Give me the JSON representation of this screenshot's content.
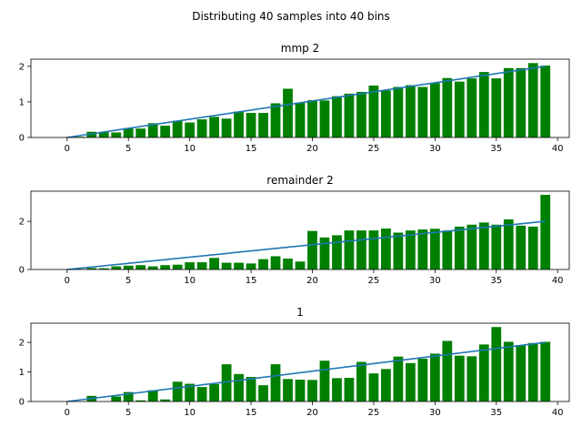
{
  "figure": {
    "suptitle": "Distributing 40 samples into 40 bins"
  },
  "colors": {
    "bar": "#008000",
    "line": "#1f77b4",
    "axis": "#000000"
  },
  "chart_data": [
    {
      "type": "bar",
      "title": "mmp  2",
      "xlim": [
        -2.95,
        40.95
      ],
      "ylim": [
        0,
        2.2
      ],
      "xticks": [
        0,
        5,
        10,
        15,
        20,
        25,
        30,
        35,
        40
      ],
      "yticks": [
        0,
        1,
        2
      ],
      "x": [
        0,
        1,
        2,
        3,
        4,
        5,
        6,
        7,
        8,
        9,
        10,
        11,
        12,
        13,
        14,
        15,
        16,
        17,
        18,
        19,
        20,
        21,
        22,
        23,
        24,
        25,
        26,
        27,
        28,
        29,
        30,
        31,
        32,
        33,
        34,
        35,
        36,
        37,
        38,
        39
      ],
      "values": [
        0.0,
        0.02,
        0.16,
        0.15,
        0.14,
        0.26,
        0.25,
        0.4,
        0.33,
        0.47,
        0.42,
        0.51,
        0.58,
        0.53,
        0.73,
        0.69,
        0.69,
        0.96,
        1.37,
        0.98,
        1.05,
        1.04,
        1.16,
        1.23,
        1.28,
        1.46,
        1.32,
        1.42,
        1.47,
        1.42,
        1.53,
        1.67,
        1.57,
        1.66,
        1.84,
        1.66,
        1.95,
        1.95,
        2.09,
        2.02
      ],
      "line": {
        "x": [
          0,
          39
        ],
        "y": [
          0,
          2
        ]
      }
    },
    {
      "type": "bar",
      "title": "remainder 2",
      "xlim": [
        -2.95,
        40.95
      ],
      "ylim": [
        0,
        3.25
      ],
      "xticks": [
        0,
        5,
        10,
        15,
        20,
        25,
        30,
        35,
        40
      ],
      "yticks": [
        0,
        2
      ],
      "x": [
        0,
        1,
        2,
        3,
        4,
        5,
        6,
        7,
        8,
        9,
        10,
        11,
        12,
        13,
        14,
        15,
        16,
        17,
        18,
        19,
        20,
        21,
        22,
        23,
        24,
        25,
        26,
        27,
        28,
        29,
        30,
        31,
        32,
        33,
        34,
        35,
        36,
        37,
        38,
        39
      ],
      "values": [
        0.0,
        0.02,
        0.06,
        0.05,
        0.13,
        0.16,
        0.18,
        0.13,
        0.18,
        0.2,
        0.3,
        0.3,
        0.48,
        0.28,
        0.28,
        0.25,
        0.43,
        0.55,
        0.45,
        0.33,
        1.6,
        1.33,
        1.42,
        1.62,
        1.62,
        1.62,
        1.7,
        1.53,
        1.62,
        1.66,
        1.69,
        1.62,
        1.78,
        1.86,
        1.95,
        1.86,
        2.08,
        1.82,
        1.78,
        3.1
      ],
      "line": {
        "x": [
          0,
          39
        ],
        "y": [
          0,
          2
        ]
      }
    },
    {
      "type": "bar",
      "title": "1",
      "xlim": [
        -2.95,
        40.95
      ],
      "ylim": [
        0,
        2.65
      ],
      "xticks": [
        0,
        5,
        10,
        15,
        20,
        25,
        30,
        35,
        40
      ],
      "yticks": [
        0,
        1,
        2
      ],
      "x": [
        0,
        1,
        2,
        3,
        4,
        5,
        6,
        7,
        8,
        9,
        10,
        11,
        12,
        13,
        14,
        15,
        16,
        17,
        18,
        19,
        20,
        21,
        22,
        23,
        24,
        25,
        26,
        27,
        28,
        29,
        30,
        31,
        32,
        33,
        34,
        35,
        36,
        37,
        38,
        39
      ],
      "values": [
        0.0,
        0.0,
        0.19,
        0.0,
        0.17,
        0.32,
        0.04,
        0.38,
        0.07,
        0.67,
        0.6,
        0.49,
        0.59,
        1.26,
        0.93,
        0.83,
        0.55,
        1.26,
        0.76,
        0.74,
        0.73,
        1.38,
        0.79,
        0.8,
        1.34,
        0.95,
        1.1,
        1.52,
        1.3,
        1.45,
        1.62,
        2.05,
        1.55,
        1.53,
        1.93,
        2.52,
        2.02,
        1.91,
        1.98,
        2.02
      ],
      "line": {
        "x": [
          0,
          39
        ],
        "y": [
          0,
          2
        ]
      }
    }
  ]
}
